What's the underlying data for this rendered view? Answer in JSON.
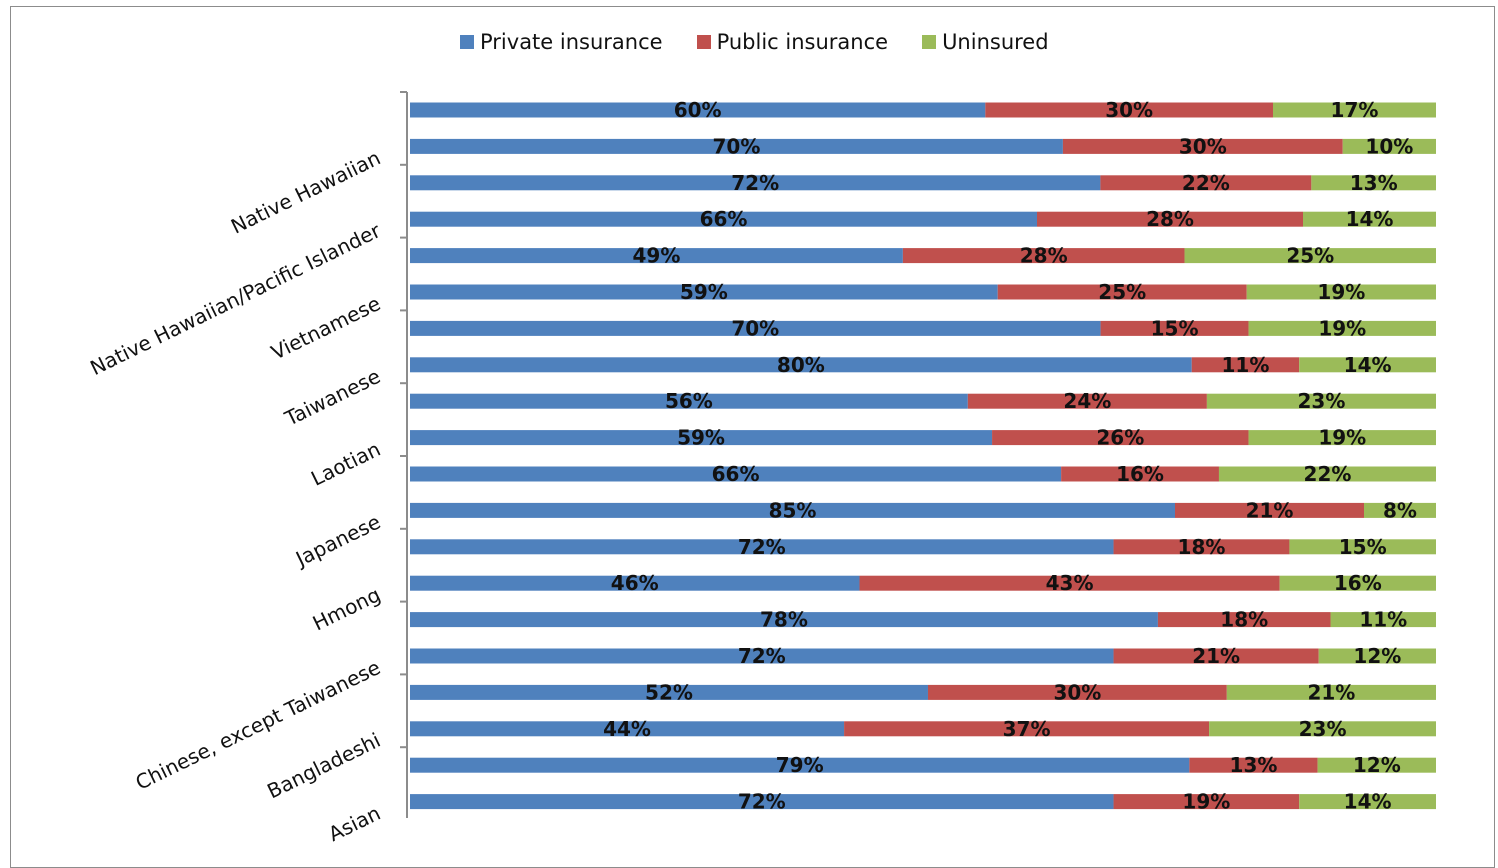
{
  "chart_data": {
    "type": "bar",
    "orientation": "horizontal",
    "stacked": true,
    "legend_position": "top-center",
    "grid": false,
    "xlim": [
      0,
      100
    ],
    "colors": {
      "private": "#4f81bd",
      "public": "#c0504d",
      "uninsured": "#9bbb59"
    },
    "legend": [
      {
        "key": "private",
        "label": "Private insurance"
      },
      {
        "key": "public",
        "label": "Public insurance"
      },
      {
        "key": "uninsured",
        "label": "Uninsured"
      }
    ],
    "category_labels": [
      {
        "label": "Native Hawaiian",
        "row": 1.5
      },
      {
        "label": "Native Hawaiian/Pacific Islander",
        "row": 3.5
      },
      {
        "label": "Vietnamese",
        "row": 5.5
      },
      {
        "label": "Taiwanese",
        "row": 7.5
      },
      {
        "label": "Laotian",
        "row": 9.5
      },
      {
        "label": "Japanese",
        "row": 11.5
      },
      {
        "label": "Hmong",
        "row": 13.5
      },
      {
        "label": "Chinese, except Taiwanese",
        "row": 15.5
      },
      {
        "label": "Bangladeshi",
        "row": 17.5
      },
      {
        "label": "Asian",
        "row": 19.5
      }
    ],
    "rows": [
      {
        "private": 60,
        "public": 30,
        "uninsured": 17
      },
      {
        "private": 70,
        "public": 30,
        "uninsured": 10
      },
      {
        "private": 72,
        "public": 22,
        "uninsured": 13
      },
      {
        "private": 66,
        "public": 28,
        "uninsured": 14
      },
      {
        "private": 49,
        "public": 28,
        "uninsured": 25
      },
      {
        "private": 59,
        "public": 25,
        "uninsured": 19
      },
      {
        "private": 70,
        "public": 15,
        "uninsured": 19
      },
      {
        "private": 80,
        "public": 11,
        "uninsured": 14
      },
      {
        "private": 56,
        "public": 24,
        "uninsured": 23
      },
      {
        "private": 59,
        "public": 26,
        "uninsured": 19
      },
      {
        "private": 66,
        "public": 16,
        "uninsured": 22
      },
      {
        "private": 85,
        "public": 21,
        "uninsured": 8
      },
      {
        "private": 72,
        "public": 18,
        "uninsured": 15
      },
      {
        "private": 46,
        "public": 43,
        "uninsured": 16
      },
      {
        "private": 78,
        "public": 18,
        "uninsured": 11
      },
      {
        "private": 72,
        "public": 21,
        "uninsured": 12
      },
      {
        "private": 52,
        "public": 30,
        "uninsured": 21
      },
      {
        "private": 44,
        "public": 37,
        "uninsured": 23
      },
      {
        "private": 79,
        "public": 13,
        "uninsured": 12
      },
      {
        "private": 72,
        "public": 19,
        "uninsured": 14
      }
    ],
    "value_suffix": "%"
  }
}
